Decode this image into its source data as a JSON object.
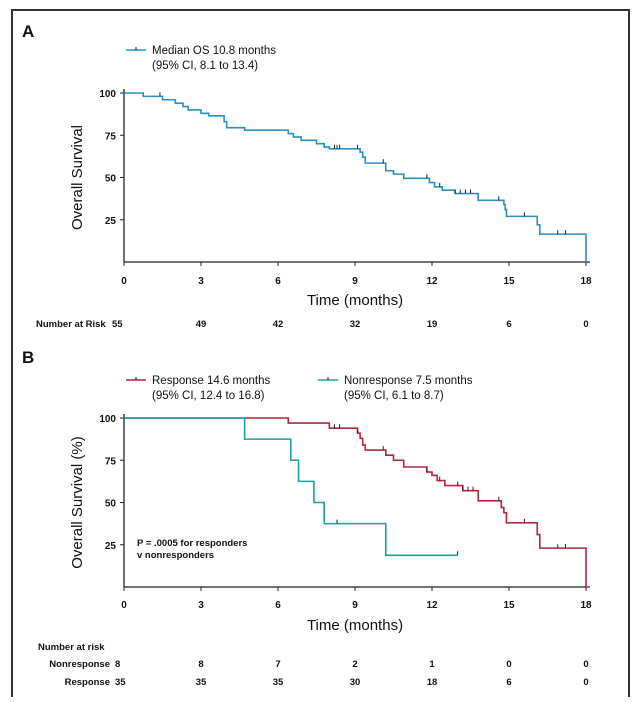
{
  "chart_data": [
    {
      "panel_label": "A",
      "type": "line",
      "step": true,
      "xlabel": "Time (months)",
      "ylabel": "Overall Survival",
      "xlim": [
        0,
        18
      ],
      "ylim": [
        0,
        100
      ],
      "xticks": [
        0,
        3,
        6,
        9,
        12,
        15,
        18
      ],
      "yticks": [
        25,
        50,
        75,
        100
      ],
      "grid": false,
      "legend_position": "top-left",
      "series": [
        {
          "name": "Median OS 10.8 months",
          "name_line2": "(95% CI, 8.1 to 13.4)",
          "color": "#2a8fc0",
          "x": [
            0,
            0.75,
            1.5,
            2.0,
            2.3,
            2.5,
            3.0,
            3.3,
            3.9,
            4.0,
            4.7,
            6.4,
            6.6,
            6.9,
            7.5,
            7.8,
            8.0,
            9.2,
            9.3,
            9.4,
            10.2,
            10.5,
            10.9,
            11.9,
            12.1,
            12.4,
            12.9,
            13.8,
            14.8,
            14.85,
            14.9,
            16.1,
            16.2,
            18.0
          ],
          "y": [
            100,
            98,
            96,
            94,
            92,
            90,
            88,
            86.5,
            83,
            79.5,
            78,
            76,
            74,
            72,
            70,
            68,
            67,
            65,
            62,
            58.5,
            54,
            52,
            49.5,
            47,
            44.5,
            42.5,
            40.5,
            36.5,
            34,
            31,
            27,
            22,
            16.5,
            0
          ],
          "censored_x": [
            1.4,
            8.2,
            8.3,
            8.4,
            9.1,
            10.1,
            11.8,
            12.3,
            12.9,
            13.1,
            13.3,
            13.5,
            14.6,
            15.6,
            16.9,
            17.2
          ]
        }
      ],
      "risk_table": {
        "title": "Number at Risk",
        "rows": [
          {
            "label": "",
            "values": [
              55,
              49,
              42,
              32,
              19,
              6,
              0
            ]
          }
        ]
      }
    },
    {
      "panel_label": "B",
      "type": "line",
      "step": true,
      "xlabel": "Time (months)",
      "ylabel": "Overall Survival (%)",
      "xlim": [
        0,
        18
      ],
      "ylim": [
        0,
        100
      ],
      "xticks": [
        0,
        3,
        6,
        9,
        12,
        15,
        18
      ],
      "yticks": [
        25,
        50,
        75,
        100
      ],
      "grid": false,
      "legend_position": "top",
      "annotation": [
        "P = .0005 for responders",
        "v nonresponders"
      ],
      "series": [
        {
          "name": "Response 14.6 months",
          "name_line2": "(95% CI, 12.4 to 16.8)",
          "color": "#b3263e",
          "x": [
            0,
            6.4,
            8.0,
            9.1,
            9.2,
            9.3,
            9.4,
            10.2,
            10.5,
            10.9,
            11.8,
            12.0,
            12.2,
            12.5,
            13.2,
            13.8,
            14.7,
            14.8,
            14.9,
            16.1,
            16.2,
            18.0
          ],
          "y": [
            100,
            97,
            94,
            91,
            88,
            84,
            81,
            78,
            75,
            71,
            68,
            66,
            63,
            60,
            57,
            51,
            47,
            44,
            38,
            31,
            23,
            0
          ],
          "censored_x": [
            8.2,
            8.4,
            9.1,
            10.1,
            11.8,
            12.3,
            13.0,
            13.2,
            13.4,
            13.6,
            14.6,
            15.6,
            16.9,
            17.2
          ]
        },
        {
          "name": "Nonresponse 7.5 months",
          "name_line2": "(95% CI, 6.1 to 8.7)",
          "color": "#1f9e9b",
          "x": [
            0,
            4.7,
            6.5,
            6.8,
            7.4,
            7.8,
            10.2,
            13.0
          ],
          "y": [
            100,
            87.5,
            75,
            62.5,
            50,
            37.5,
            18.75,
            18.75
          ],
          "censored_x": [
            8.3,
            13.0
          ]
        }
      ],
      "risk_table": {
        "title": "Number at risk",
        "rows": [
          {
            "label": "Nonresponse",
            "values": [
              8,
              8,
              7,
              2,
              1,
              0,
              0
            ]
          },
          {
            "label": "Response",
            "values": [
              35,
              35,
              35,
              30,
              18,
              6,
              0
            ]
          }
        ]
      }
    }
  ]
}
